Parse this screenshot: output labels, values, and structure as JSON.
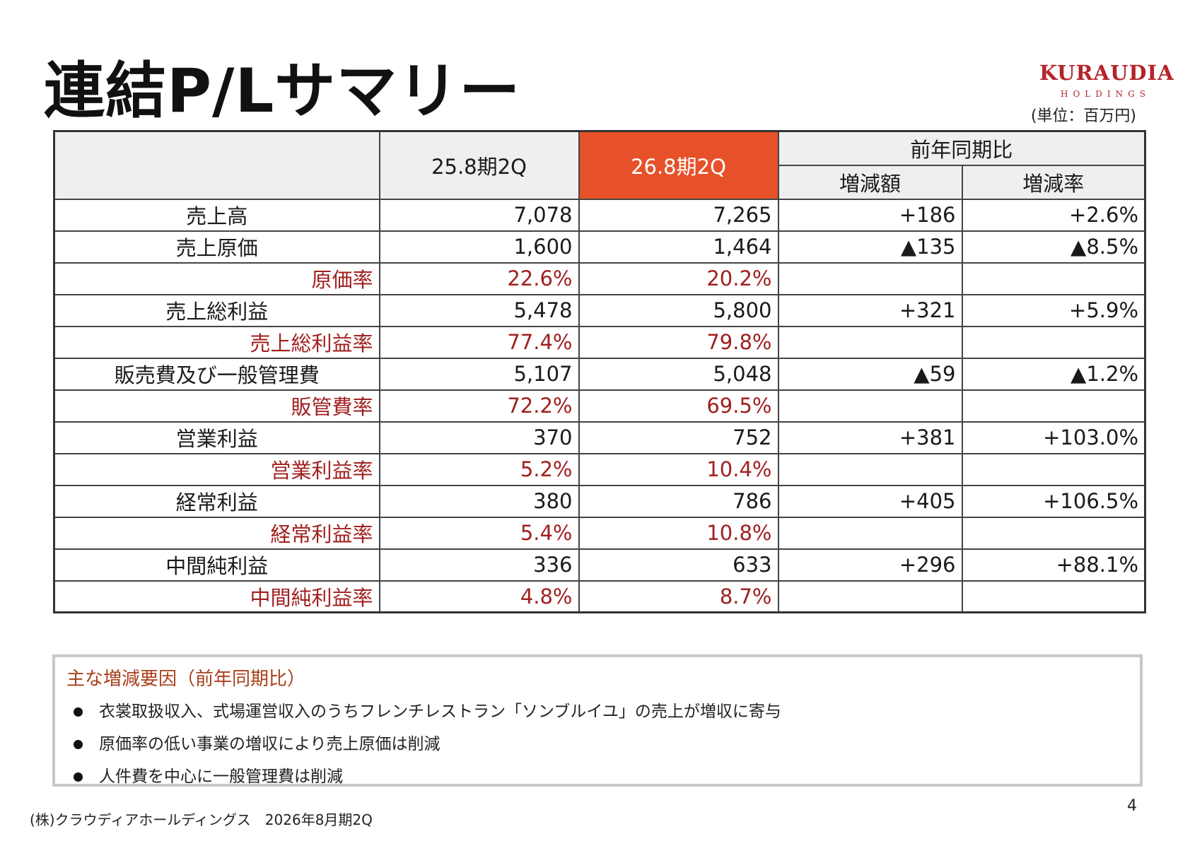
{
  "title": "連結P/Lサマリー",
  "logo": {
    "main": "KURAUDIA",
    "sub": "HOLDINGS"
  },
  "unit": "(単位：百万円)",
  "table": {
    "headers": {
      "prev": "25.8期2Q",
      "curr": "26.8期2Q",
      "yoy": "前年同期比",
      "diff": "増減額",
      "rate": "増減率"
    },
    "rows": [
      {
        "label": "売上高",
        "prev": "7,078",
        "curr": "7,265",
        "diff": "+186",
        "rate": "+2.6%"
      },
      {
        "label": "売上原価",
        "prev": "1,600",
        "curr": "1,464",
        "diff": "▲135",
        "rate": "▲8.5%"
      },
      {
        "label": "原価率",
        "prev": "22.6%",
        "curr": "20.2%",
        "diff": "",
        "rate": ""
      },
      {
        "label": "売上総利益",
        "prev": "5,478",
        "curr": "5,800",
        "diff": "+321",
        "rate": "+5.9%"
      },
      {
        "label": "売上総利益率",
        "prev": "77.4%",
        "curr": "79.8%",
        "diff": "",
        "rate": ""
      },
      {
        "label": "販売費及び一般管理費",
        "prev": "5,107",
        "curr": "5,048",
        "diff": "▲59",
        "rate": "▲1.2%"
      },
      {
        "label": "販管費率",
        "prev": "72.2%",
        "curr": "69.5%",
        "diff": "",
        "rate": ""
      },
      {
        "label": "営業利益",
        "prev": "370",
        "curr": "752",
        "diff": "+381",
        "rate": "+103.0%"
      },
      {
        "label": "営業利益率",
        "prev": "5.2%",
        "curr": "10.4%",
        "diff": "",
        "rate": ""
      },
      {
        "label": "経常利益",
        "prev": "380",
        "curr": "786",
        "diff": "+405",
        "rate": "+106.5%"
      },
      {
        "label": "経常利益率",
        "prev": "5.4%",
        "curr": "10.8%",
        "diff": "",
        "rate": ""
      },
      {
        "label": "中間純利益",
        "prev": "336",
        "curr": "633",
        "diff": "+296",
        "rate": "+88.1%"
      },
      {
        "label": "中間純利益率",
        "prev": "4.8%",
        "curr": "8.7%",
        "diff": "",
        "rate": ""
      }
    ]
  },
  "factors": {
    "title": "主な増減要因（前年同期比）",
    "items": [
      "衣裳取扱収入、式場運営収入のうちフレンチレストラン「ソンブルイユ」の売上が増収に寄与",
      "原価率の低い事業の増収により売上原価は削減",
      "人件費を中心に一般管理費は削減"
    ]
  },
  "footer": {
    "company": "(株)クラウディアホールディングス　2026年8月期2Q",
    "page": "4"
  },
  "colors": {
    "accent": "#e6512a",
    "ratio_text": "#a02020",
    "logo": "#b5242a"
  }
}
